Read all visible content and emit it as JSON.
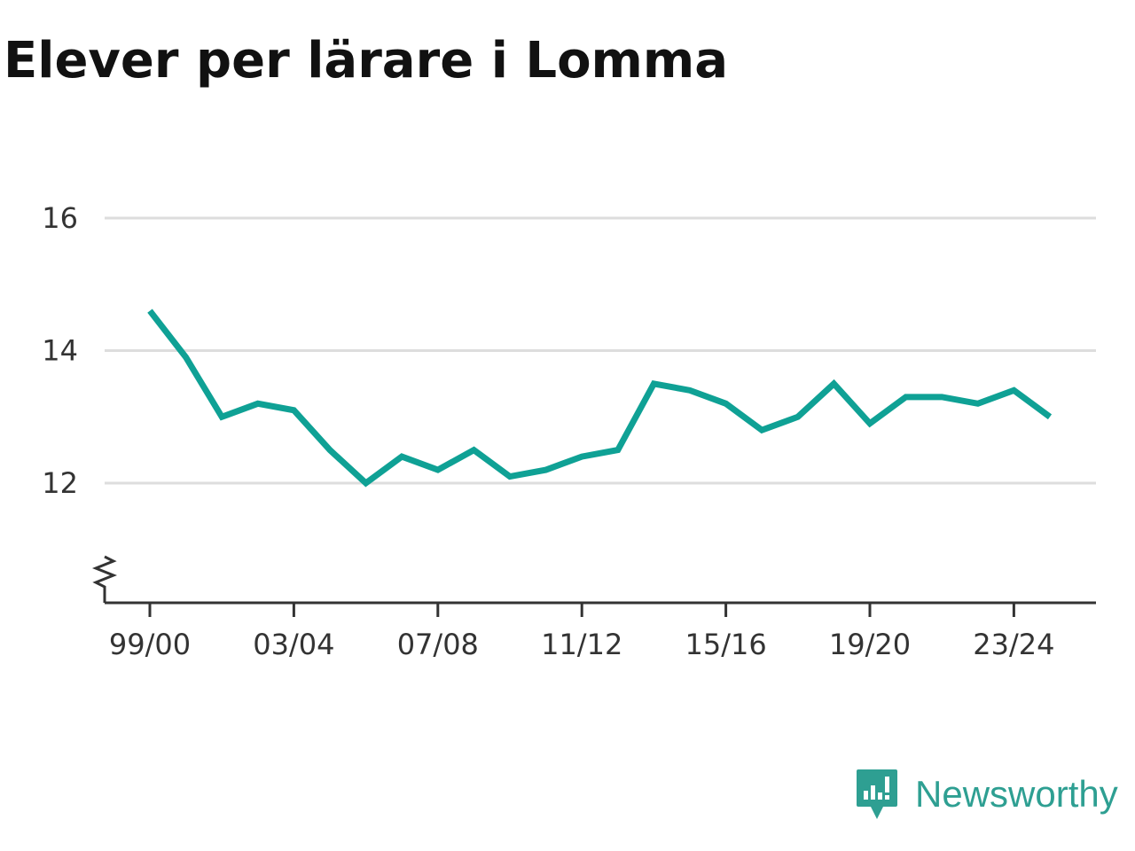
{
  "title": "Elever per lärare i Lomma",
  "brand": {
    "name": "Newsworthy",
    "logo_icon": "newsworthy-chart-bubble-icon"
  },
  "colors": {
    "line": "#0fa195",
    "grid": "#dddddd",
    "axis": "#333333",
    "brand": "#2e9f92"
  },
  "chart_data": {
    "type": "line",
    "title": "Elever per lärare i Lomma",
    "xlabel": "",
    "ylabel": "",
    "x": [
      "99/00",
      "00/01",
      "01/02",
      "02/03",
      "03/04",
      "04/05",
      "05/06",
      "06/07",
      "07/08",
      "08/09",
      "09/10",
      "10/11",
      "11/12",
      "12/13",
      "13/14",
      "14/15",
      "15/16",
      "16/17",
      "17/18",
      "18/19",
      "19/20",
      "20/21",
      "21/22",
      "22/23",
      "23/24",
      "24/25"
    ],
    "x_tick_labels": [
      "99/00",
      "03/04",
      "07/08",
      "11/12",
      "15/16",
      "19/20",
      "23/24"
    ],
    "y_ticks": [
      12,
      14,
      16
    ],
    "ylim": [
      10.9,
      16
    ],
    "axis_break": true,
    "grid": true,
    "series": [
      {
        "values": [
          14.6,
          13.9,
          13.0,
          13.2,
          13.1,
          12.5,
          12.0,
          12.4,
          12.2,
          12.5,
          12.1,
          12.2,
          12.4,
          12.5,
          13.5,
          13.4,
          13.2,
          12.8,
          13.0,
          13.5,
          12.9,
          13.3,
          13.3,
          13.2,
          13.4,
          13.0
        ]
      }
    ]
  }
}
